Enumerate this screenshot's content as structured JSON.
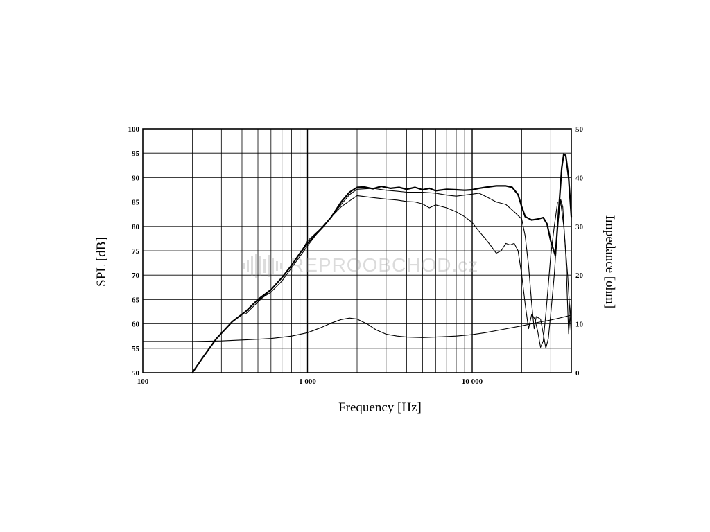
{
  "chart_data": {
    "type": "line",
    "xlabel": "Frequency [Hz]",
    "ylabel": "SPL [dB]",
    "y2label": "Impedance [ohm]",
    "x_scale": "log",
    "xlim": [
      100,
      40000
    ],
    "ylim": [
      50,
      100
    ],
    "y2lim": [
      0,
      50
    ],
    "grid": true,
    "x_ticks": [
      {
        "value": 100,
        "label": "100"
      },
      {
        "value": 1000,
        "label": "1 000"
      },
      {
        "value": 10000,
        "label": "10 000"
      }
    ],
    "y_ticks": [
      50,
      55,
      60,
      65,
      70,
      75,
      80,
      85,
      90,
      95,
      100
    ],
    "y2_ticks": [
      0,
      10,
      20,
      30,
      40,
      50
    ],
    "watermark": "REPROOBCHOD.cz",
    "series": [
      {
        "axis": "left",
        "stroke_width": 2.2,
        "points": [
          [
            200,
            50
          ],
          [
            230,
            53
          ],
          [
            280,
            57
          ],
          [
            350,
            60.5
          ],
          [
            420,
            62.5
          ],
          [
            500,
            65
          ],
          [
            600,
            67
          ],
          [
            700,
            69.5
          ],
          [
            800,
            72
          ],
          [
            900,
            74.5
          ],
          [
            1000,
            76.5
          ],
          [
            1100,
            78
          ],
          [
            1250,
            80
          ],
          [
            1400,
            82
          ],
          [
            1600,
            85
          ],
          [
            1800,
            87
          ],
          [
            2000,
            88
          ],
          [
            2200,
            88.1
          ],
          [
            2500,
            87.7
          ],
          [
            2800,
            88.2
          ],
          [
            3200,
            87.8
          ],
          [
            3600,
            88
          ],
          [
            4000,
            87.6
          ],
          [
            4500,
            88
          ],
          [
            5000,
            87.5
          ],
          [
            5500,
            87.8
          ],
          [
            6000,
            87.3
          ],
          [
            7000,
            87.6
          ],
          [
            8000,
            87.5
          ],
          [
            9000,
            87.4
          ],
          [
            10000,
            87.5
          ],
          [
            11000,
            87.8
          ],
          [
            12000,
            88
          ],
          [
            14000,
            88.3
          ],
          [
            16000,
            88.3
          ],
          [
            17500,
            88
          ],
          [
            19000,
            86.5
          ],
          [
            20000,
            84
          ],
          [
            21000,
            82
          ],
          [
            23000,
            81.3
          ],
          [
            25000,
            81.5
          ],
          [
            27000,
            81.8
          ],
          [
            28500,
            80.5
          ],
          [
            30000,
            77
          ],
          [
            32000,
            74
          ],
          [
            33500,
            83
          ],
          [
            35000,
            92
          ],
          [
            36000,
            94.8
          ],
          [
            37000,
            94.5
          ],
          [
            38500,
            90
          ],
          [
            40000,
            82
          ]
        ]
      },
      {
        "axis": "left",
        "stroke_width": 1.1,
        "points": [
          [
            420,
            62
          ],
          [
            500,
            64.5
          ],
          [
            600,
            67
          ],
          [
            700,
            69.5
          ],
          [
            800,
            72
          ],
          [
            900,
            74.5
          ],
          [
            1000,
            77
          ],
          [
            1200,
            79.5
          ],
          [
            1400,
            82
          ],
          [
            1600,
            84.5
          ],
          [
            1800,
            86.5
          ],
          [
            2000,
            87.6
          ],
          [
            2500,
            87.8
          ],
          [
            3000,
            87.4
          ],
          [
            3500,
            87.2
          ],
          [
            4000,
            87
          ],
          [
            5000,
            87
          ],
          [
            6000,
            86.8
          ],
          [
            7000,
            86.4
          ],
          [
            8000,
            86.2
          ],
          [
            10000,
            86.6
          ],
          [
            11000,
            86.8
          ],
          [
            12000,
            86.2
          ],
          [
            14000,
            85
          ],
          [
            16000,
            84.5
          ],
          [
            18000,
            83
          ],
          [
            20000,
            81.5
          ],
          [
            21000,
            78
          ],
          [
            22000,
            72
          ],
          [
            23000,
            64
          ],
          [
            23800,
            59
          ],
          [
            24500,
            61.5
          ],
          [
            26000,
            61
          ],
          [
            27000,
            58
          ],
          [
            28000,
            55
          ],
          [
            29000,
            57
          ],
          [
            30000,
            62
          ],
          [
            31500,
            70
          ],
          [
            33000,
            80
          ],
          [
            34500,
            85.5
          ],
          [
            35500,
            84
          ],
          [
            37000,
            74
          ],
          [
            38500,
            58
          ],
          [
            40000,
            65
          ]
        ]
      },
      {
        "axis": "left",
        "stroke_width": 1.1,
        "points": [
          [
            500,
            64.8
          ],
          [
            600,
            66.5
          ],
          [
            700,
            68.8
          ],
          [
            800,
            71.5
          ],
          [
            1000,
            76
          ],
          [
            1200,
            79.5
          ],
          [
            1400,
            82
          ],
          [
            1600,
            84
          ],
          [
            2000,
            86.3
          ],
          [
            2500,
            85.9
          ],
          [
            3000,
            85.6
          ],
          [
            3500,
            85.4
          ],
          [
            4000,
            85.1
          ],
          [
            4500,
            85
          ],
          [
            5000,
            84.6
          ],
          [
            5500,
            83.8
          ],
          [
            6000,
            84.4
          ],
          [
            7000,
            83.8
          ],
          [
            8000,
            83
          ],
          [
            9000,
            82
          ],
          [
            10000,
            80.8
          ],
          [
            11000,
            79
          ],
          [
            12000,
            77.5
          ],
          [
            13000,
            76
          ],
          [
            14000,
            74.5
          ],
          [
            15000,
            75
          ],
          [
            16000,
            76.5
          ],
          [
            17000,
            76.2
          ],
          [
            18000,
            76.5
          ],
          [
            19000,
            75
          ],
          [
            20000,
            70
          ],
          [
            21000,
            64
          ],
          [
            22000,
            59
          ],
          [
            23000,
            62
          ],
          [
            24000,
            61
          ],
          [
            25000,
            58.5
          ],
          [
            26000,
            55.2
          ],
          [
            27000,
            56.5
          ],
          [
            28000,
            62
          ],
          [
            29000,
            68
          ],
          [
            30000,
            74
          ],
          [
            31500,
            80
          ],
          [
            33000,
            85
          ],
          [
            34500,
            85
          ],
          [
            36000,
            80
          ],
          [
            38000,
            70
          ],
          [
            40000,
            57.5
          ]
        ]
      },
      {
        "axis": "right",
        "stroke_width": 1.1,
        "points": [
          [
            100,
            6.4
          ],
          [
            200,
            6.4
          ],
          [
            300,
            6.5
          ],
          [
            400,
            6.7
          ],
          [
            600,
            7
          ],
          [
            800,
            7.5
          ],
          [
            1000,
            8.2
          ],
          [
            1200,
            9.2
          ],
          [
            1400,
            10.2
          ],
          [
            1600,
            10.9
          ],
          [
            1800,
            11.2
          ],
          [
            2000,
            11
          ],
          [
            2300,
            10
          ],
          [
            2600,
            8.8
          ],
          [
            3000,
            7.9
          ],
          [
            3500,
            7.5
          ],
          [
            4000,
            7.3
          ],
          [
            5000,
            7.2
          ],
          [
            6000,
            7.3
          ],
          [
            8000,
            7.5
          ],
          [
            10000,
            7.8
          ],
          [
            12000,
            8.2
          ],
          [
            15000,
            8.8
          ],
          [
            20000,
            9.6
          ],
          [
            25000,
            10.3
          ],
          [
            30000,
            10.8
          ],
          [
            35000,
            11.3
          ],
          [
            40000,
            11.8
          ]
        ]
      }
    ]
  }
}
